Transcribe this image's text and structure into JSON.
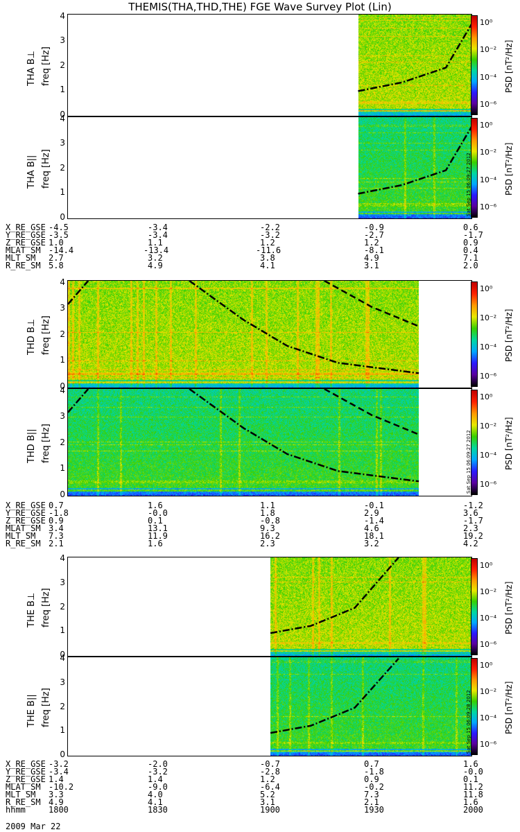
{
  "title": "THEMIS(THA,THD,THE) FGE Wave Survey Plot (Lin)",
  "date_label": "2009 Mar 22",
  "colorbar": {
    "title": "PSD [nT²/Hz]",
    "ticks": [
      "10⁰",
      "10⁻²",
      "10⁻⁴",
      "10⁻⁶"
    ],
    "colors": [
      "#000000",
      "#5a00a0",
      "#2a1aff",
      "#00a8ff",
      "#00d8a0",
      "#38d000",
      "#e8e800",
      "#ff9800",
      "#ff2000",
      "#c00000"
    ]
  },
  "stamps": [
    "Sat Sep 15 06:09:27 2012",
    "Sat Sep 15 06:09:27 2012",
    "Sat Sep 15 06:09:28 2012"
  ],
  "chart_data": {
    "type": "heatmap",
    "x_time_ticks": [
      "1800",
      "1830",
      "1900",
      "1930",
      "2000"
    ],
    "xlim_hhmm": [
      "1800",
      "2000"
    ],
    "freq_ticks": [
      0,
      1,
      2,
      3,
      4
    ],
    "ylim_hz": [
      0,
      4.1
    ],
    "panels": [
      {
        "label": "THA B⊥",
        "ylabel": "freq [Hz]",
        "data_start": "1926",
        "curves": [
          {
            "style": "dash-dot",
            "points": [
              [
                1926,
                1.0
              ],
              [
                1939,
                1.35
              ],
              [
                1952,
                1.95
              ],
              [
                2000,
                3.8
              ]
            ]
          }
        ]
      },
      {
        "label": "THA B||",
        "ylabel": "freq [Hz]",
        "data_start": "1926",
        "curves": [
          {
            "style": "dash-dot",
            "points": [
              [
                1926,
                1.0
              ],
              [
                1939,
                1.35
              ],
              [
                1952,
                1.95
              ],
              [
                2000,
                3.8
              ]
            ]
          }
        ]
      },
      {
        "label": "THD B⊥",
        "ylabel": "freq [Hz]",
        "data_start": "1800",
        "data_end": "1944",
        "curves": [
          {
            "style": "dash-dot",
            "points": [
              [
                1800,
                3.2
              ],
              [
                1806,
                4.1
              ]
            ]
          },
          {
            "style": "dash-dot",
            "points": [
              [
                1836,
                4.1
              ],
              [
                1852,
                2.6
              ],
              [
                1905,
                1.6
              ],
              [
                1920,
                0.95
              ],
              [
                1944,
                0.55
              ]
            ]
          },
          {
            "style": "dash",
            "points": [
              [
                1916,
                4.1
              ],
              [
                1930,
                3.1
              ],
              [
                1944,
                2.35
              ]
            ]
          }
        ]
      },
      {
        "label": "THD B||",
        "ylabel": "freq [Hz]",
        "data_start": "1800",
        "data_end": "1944",
        "curves": [
          {
            "style": "dash-dot",
            "points": [
              [
                1800,
                3.2
              ],
              [
                1806,
                4.1
              ]
            ]
          },
          {
            "style": "dash-dot",
            "points": [
              [
                1836,
                4.1
              ],
              [
                1852,
                2.6
              ],
              [
                1905,
                1.6
              ],
              [
                1920,
                0.95
              ],
              [
                1944,
                0.55
              ]
            ]
          },
          {
            "style": "dash",
            "points": [
              [
                1916,
                4.1
              ],
              [
                1930,
                3.1
              ],
              [
                1944,
                2.35
              ]
            ]
          }
        ]
      },
      {
        "label": "THE B⊥",
        "ylabel": "freq [Hz]",
        "data_start": "1900",
        "curves": [
          {
            "style": "dash-dot",
            "points": [
              [
                1900,
                0.95
              ],
              [
                1912,
                1.25
              ],
              [
                1925,
                2.0
              ],
              [
                1938,
                4.1
              ]
            ]
          }
        ]
      },
      {
        "label": "THE B||",
        "ylabel": "freq [Hz]",
        "data_start": "1900",
        "curves": [
          {
            "style": "dash-dot",
            "points": [
              [
                1900,
                0.95
              ],
              [
                1912,
                1.25
              ],
              [
                1925,
                2.0
              ],
              [
                1938,
                4.05
              ]
            ]
          }
        ]
      }
    ],
    "ephemeris": [
      {
        "rows": [
          {
            "name": "X_RE_GSE",
            "values": [
              "-4.5",
              "-3.4",
              "-2.2",
              "-0.9",
              "0.6"
            ]
          },
          {
            "name": "Y_RE_GSE",
            "values": [
              "-3.5",
              "-3.4",
              "-3.2",
              "-2.7",
              "-1.7"
            ]
          },
          {
            "name": "Z_RE_GSE",
            "values": [
              "1.0",
              "1.1",
              "1.2",
              "1.2",
              "0.9"
            ]
          },
          {
            "name": "MLAT_SM",
            "values": [
              "-14.4",
              "-13.4",
              "-11.6",
              "-8.1",
              "0.4"
            ]
          },
          {
            "name": "MLT_SM",
            "values": [
              "2.7",
              "3.2",
              "3.8",
              "4.9",
              "7.1"
            ]
          },
          {
            "name": "R_RE_SM",
            "values": [
              "5.8",
              "4.9",
              "4.1",
              "3.1",
              "2.0"
            ]
          }
        ]
      },
      {
        "rows": [
          {
            "name": "X_RE_GSE",
            "values": [
              "0.7",
              "1.6",
              "1.1",
              "-0.1",
              "-1.2"
            ]
          },
          {
            "name": "Y_RE_GSE",
            "values": [
              "-1.8",
              "-0.0",
              "1.8",
              "2.9",
              "3.6"
            ]
          },
          {
            "name": "Z_RE_GSE",
            "values": [
              "0.9",
              "0.1",
              "-0.8",
              "-1.4",
              "-1.7"
            ]
          },
          {
            "name": "MLAT_SM",
            "values": [
              "3.4",
              "13.1",
              "9.3",
              "4.6",
              "2.3"
            ]
          },
          {
            "name": "MLT_SM",
            "values": [
              "7.3",
              "11.9",
              "16.2",
              "18.1",
              "19.2"
            ]
          },
          {
            "name": "R_RE_SM",
            "values": [
              "2.1",
              "1.6",
              "2.3",
              "3.2",
              "4.2"
            ]
          }
        ]
      },
      {
        "rows": [
          {
            "name": "X_RE_GSE",
            "values": [
              "-3.2",
              "-2.0",
              "-0.7",
              "0.7",
              "1.6"
            ]
          },
          {
            "name": "Y_RE_GSE",
            "values": [
              "-3.4",
              "-3.2",
              "-2.8",
              "-1.8",
              "-0.0"
            ]
          },
          {
            "name": "Z_RE_GSE",
            "values": [
              "1.4",
              "1.4",
              "1.2",
              "0.9",
              "0.1"
            ]
          },
          {
            "name": "MLAT_SM",
            "values": [
              "-10.2",
              "-9.0",
              "-6.4",
              "-0.2",
              "11.2"
            ]
          },
          {
            "name": "MLT_SM",
            "values": [
              "3.3",
              "4.0",
              "5.2",
              "7.3",
              "11.8"
            ]
          },
          {
            "name": "R_RE_SM",
            "values": [
              "4.9",
              "4.1",
              "3.1",
              "2.1",
              "1.6"
            ]
          },
          {
            "name": "hhmm",
            "values": [
              "1800",
              "1830",
              "1900",
              "1930",
              "2000"
            ]
          }
        ]
      }
    ]
  }
}
